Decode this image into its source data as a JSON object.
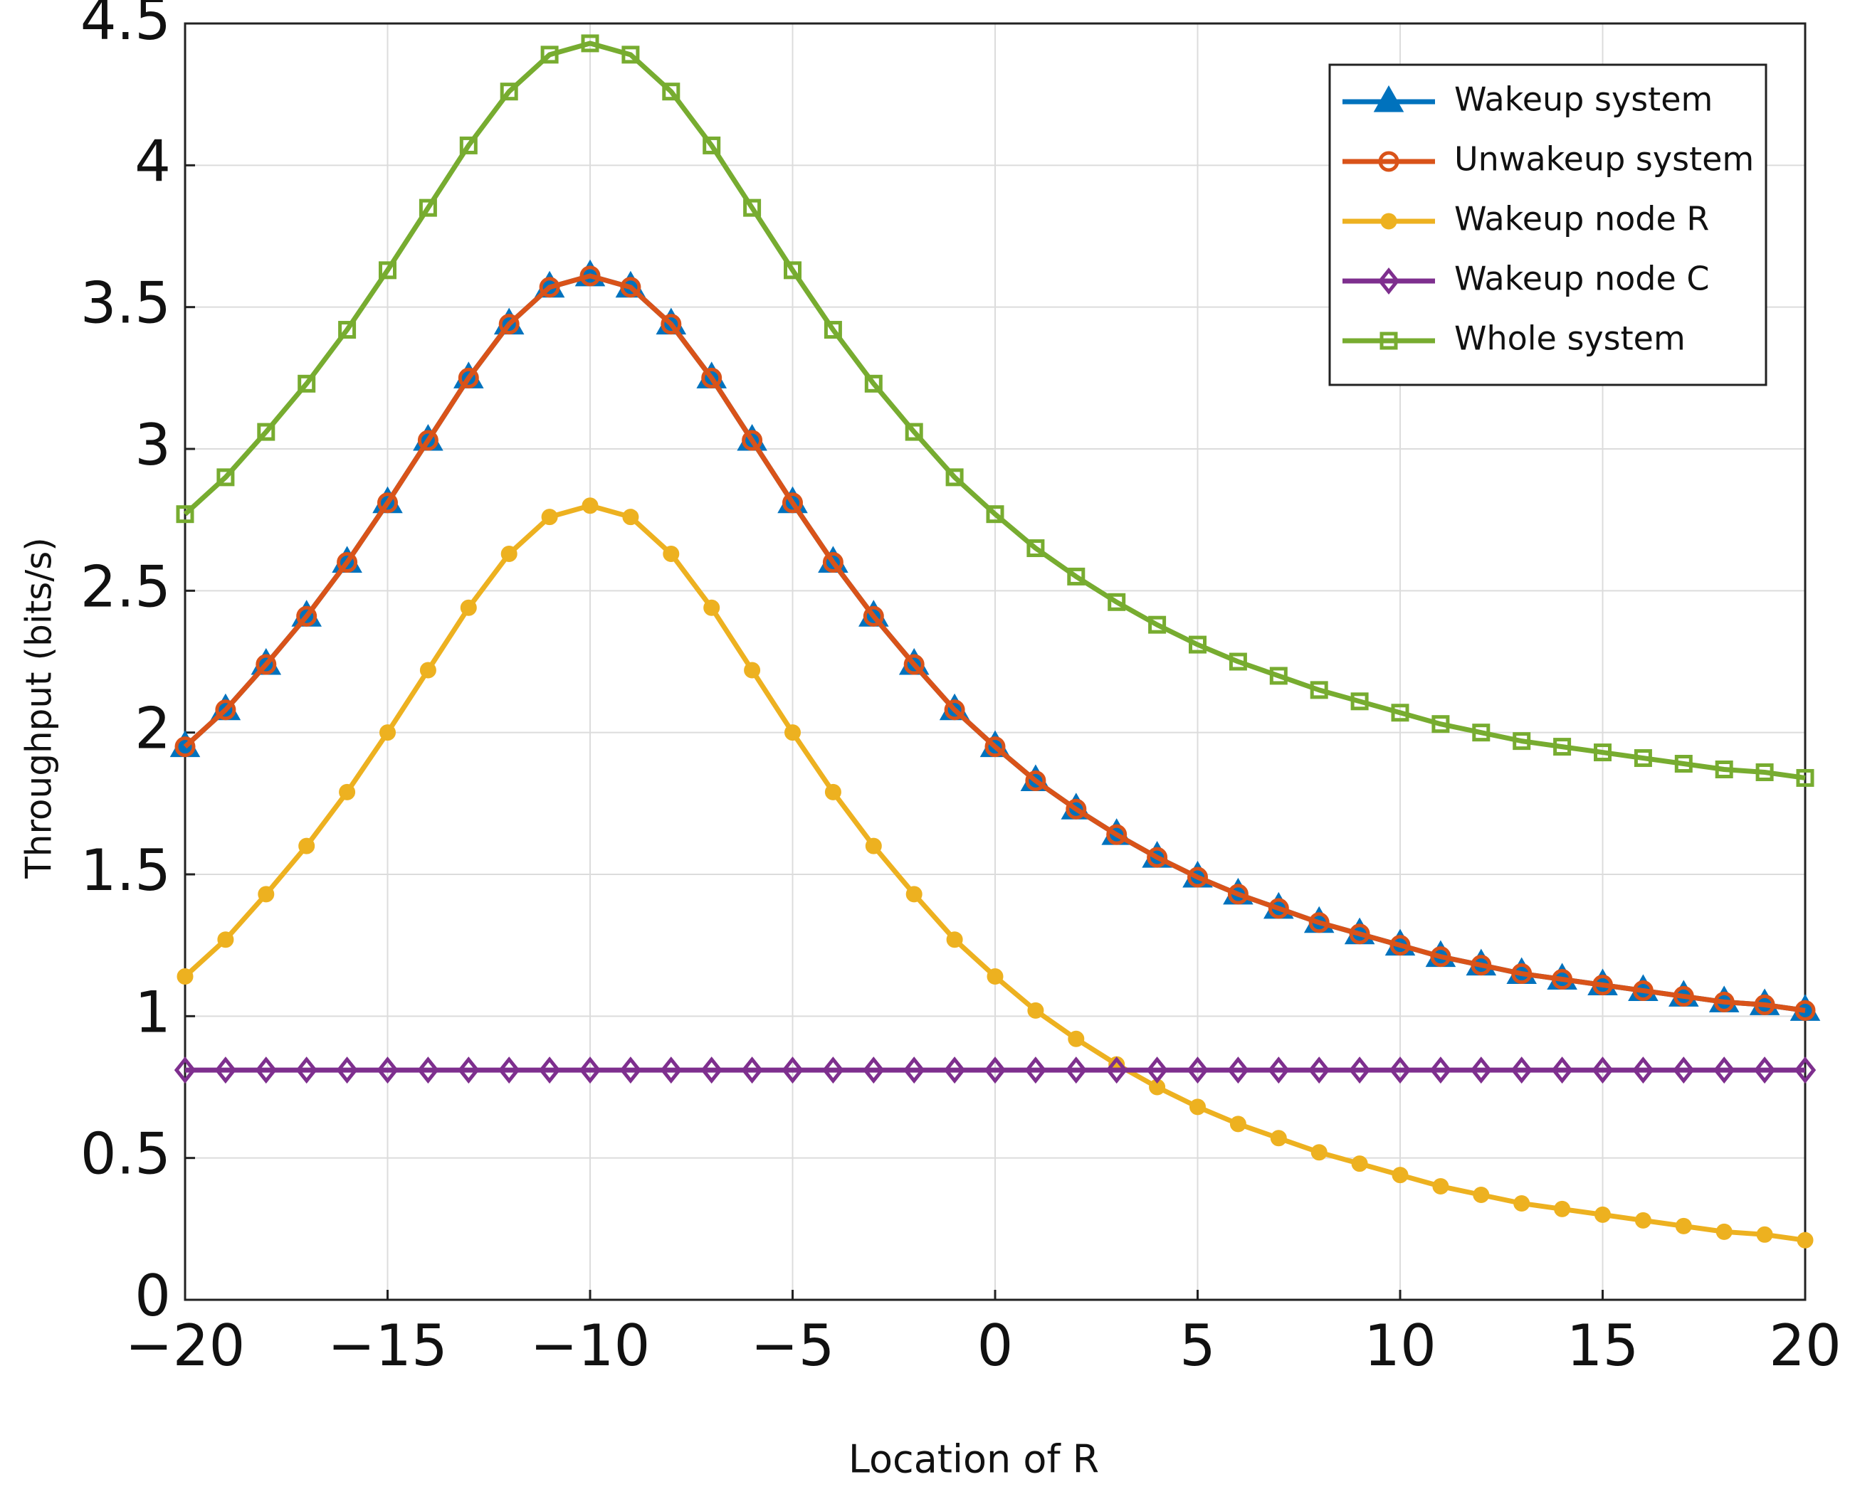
{
  "chart_data": {
    "type": "line",
    "xlabel": "Location of R",
    "ylabel": "Throughput (bits/s)",
    "x": [
      -20,
      -19,
      -18,
      -17,
      -16,
      -15,
      -14,
      -13,
      -12,
      -11,
      -10,
      -9,
      -8,
      -7,
      -6,
      -5,
      -4,
      -3,
      -2,
      -1,
      0,
      1,
      2,
      3,
      4,
      5,
      6,
      7,
      8,
      9,
      10,
      11,
      12,
      13,
      14,
      15,
      16,
      17,
      18,
      19,
      20
    ],
    "xlim": [
      -20,
      20
    ],
    "xticks": [
      {
        "value": -20,
        "label": "−20"
      },
      {
        "value": -15,
        "label": "−15"
      },
      {
        "value": -10,
        "label": "−10"
      },
      {
        "value": -5,
        "label": "−5"
      },
      0,
      5,
      10,
      15,
      20
    ],
    "ylim": [
      0,
      4.5
    ],
    "yticks": [
      0,
      0.5,
      1,
      1.5,
      2,
      2.5,
      3,
      3.5,
      4,
      4.5
    ],
    "grid": true,
    "legend": "upper right",
    "series": [
      {
        "name": "Wakeup system",
        "color": "#0072bd",
        "marker": "triangle",
        "values": [
          1.95,
          2.08,
          2.24,
          2.41,
          2.6,
          2.81,
          3.03,
          3.25,
          3.44,
          3.57,
          3.61,
          3.57,
          3.44,
          3.25,
          3.03,
          2.81,
          2.6,
          2.41,
          2.24,
          2.08,
          1.95,
          1.83,
          1.73,
          1.64,
          1.56,
          1.49,
          1.43,
          1.38,
          1.33,
          1.29,
          1.25,
          1.21,
          1.18,
          1.15,
          1.13,
          1.11,
          1.09,
          1.07,
          1.05,
          1.04,
          1.02
        ]
      },
      {
        "name": "Unwakeup system",
        "color": "#d95319",
        "marker": "circle",
        "values": [
          1.95,
          2.08,
          2.24,
          2.41,
          2.6,
          2.81,
          3.03,
          3.25,
          3.44,
          3.57,
          3.61,
          3.57,
          3.44,
          3.25,
          3.03,
          2.81,
          2.6,
          2.41,
          2.24,
          2.08,
          1.95,
          1.83,
          1.73,
          1.64,
          1.56,
          1.49,
          1.43,
          1.38,
          1.33,
          1.29,
          1.25,
          1.21,
          1.18,
          1.15,
          1.13,
          1.11,
          1.09,
          1.07,
          1.05,
          1.04,
          1.02
        ]
      },
      {
        "name": "Wakeup node R",
        "color": "#edb120",
        "marker": "dot",
        "values": [
          1.14,
          1.27,
          1.43,
          1.6,
          1.79,
          2.0,
          2.22,
          2.44,
          2.63,
          2.76,
          2.8,
          2.76,
          2.63,
          2.44,
          2.22,
          2.0,
          1.79,
          1.6,
          1.43,
          1.27,
          1.14,
          1.02,
          0.92,
          0.83,
          0.75,
          0.68,
          0.62,
          0.57,
          0.52,
          0.48,
          0.44,
          0.4,
          0.37,
          0.34,
          0.32,
          0.3,
          0.28,
          0.26,
          0.24,
          0.23,
          0.21
        ]
      },
      {
        "name": "Wakeup node C",
        "color": "#7e2f8e",
        "marker": "diamond",
        "values": [
          0.81,
          0.81,
          0.81,
          0.81,
          0.81,
          0.81,
          0.81,
          0.81,
          0.81,
          0.81,
          0.81,
          0.81,
          0.81,
          0.81,
          0.81,
          0.81,
          0.81,
          0.81,
          0.81,
          0.81,
          0.81,
          0.81,
          0.81,
          0.81,
          0.81,
          0.81,
          0.81,
          0.81,
          0.81,
          0.81,
          0.81,
          0.81,
          0.81,
          0.81,
          0.81,
          0.81,
          0.81,
          0.81,
          0.81,
          0.81,
          0.81
        ]
      },
      {
        "name": "Whole system",
        "color": "#77ac30",
        "marker": "square",
        "values": [
          2.77,
          2.9,
          3.06,
          3.23,
          3.42,
          3.63,
          3.85,
          4.07,
          4.26,
          4.39,
          4.43,
          4.39,
          4.26,
          4.07,
          3.85,
          3.63,
          3.42,
          3.23,
          3.06,
          2.9,
          2.77,
          2.65,
          2.55,
          2.46,
          2.38,
          2.31,
          2.25,
          2.2,
          2.15,
          2.11,
          2.07,
          2.03,
          2.0,
          1.97,
          1.95,
          1.93,
          1.91,
          1.89,
          1.87,
          1.86,
          1.84
        ]
      }
    ]
  }
}
